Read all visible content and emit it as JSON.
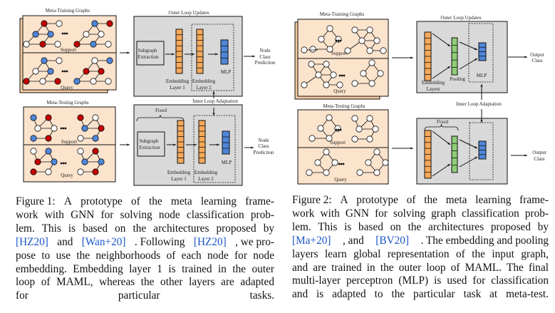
{
  "figure1": {
    "diagram": {
      "training_title": "Meta-Training Graphs",
      "testing_title": "Meta-Testing Graphs",
      "support": "Support",
      "query": "Query",
      "ellipsis": "•••",
      "outer_loop": "Outer Loop Updates",
      "inner_loop": "Inner Loop Adaptation",
      "subgraph": [
        "Subgraph",
        "Extraction"
      ],
      "emb1": [
        "Embedding",
        "Layer 1"
      ],
      "emb2": [
        "Embedding",
        "Layer 2"
      ],
      "mlp": "MLP",
      "fixed": "Fixed",
      "output": [
        "Node",
        "Class",
        "Prediction"
      ]
    },
    "caption_lines": [
      [
        {
          "t": "Figure 1:"
        },
        {
          "t": "A"
        },
        {
          "t": "prototype"
        },
        {
          "t": "of"
        },
        {
          "t": "the"
        },
        {
          "t": "meta"
        },
        {
          "t": "learning"
        },
        {
          "t": "frame-"
        }
      ],
      [
        {
          "t": "work with GNN for solving node classification prob-"
        }
      ],
      [
        {
          "t": "lem.  This is based on the architectures proposed by"
        }
      ],
      [
        {
          "t": "[HZ20]",
          "cite": true
        },
        {
          "t": "and"
        },
        {
          "t": "[Wan+20]",
          "cite": true
        },
        {
          "t": ". Following"
        },
        {
          "t": "[HZ20]",
          "cite": true
        },
        {
          "t": ", we pro-"
        }
      ],
      [
        {
          "t": "pose to use the neighborhoods of each node for node"
        }
      ],
      [
        {
          "t": "embedding. Embedding layer 1 is trained in the outer"
        }
      ],
      [
        {
          "t": "loop of MAML, whereas the other layers are adapted"
        }
      ],
      [
        {
          "t": "for particular tasks."
        }
      ]
    ]
  },
  "figure2": {
    "diagram": {
      "training_title": "Meta-Training Graphs",
      "testing_title": "Meta-Testing Graphs",
      "support": "Support",
      "query": "Query",
      "ellipsis": "•••",
      "outer_loop": "Outer Loop Updates",
      "inner_loop": "Inner Loop Adaptation",
      "emb": [
        "Embedding",
        "Layers"
      ],
      "pooling": "Pooling",
      "mlp": "MLP",
      "fixed": "Fixed",
      "output": [
        "Output",
        "Class"
      ]
    },
    "caption_lines": [
      [
        {
          "t": "Figure 2:"
        },
        {
          "t": "A"
        },
        {
          "t": "prototype"
        },
        {
          "t": "of"
        },
        {
          "t": "the"
        },
        {
          "t": "meta"
        },
        {
          "t": "learning"
        },
        {
          "t": "frame-"
        }
      ],
      [
        {
          "t": "work with GNN for solving graph classification prob-"
        }
      ],
      [
        {
          "t": "lem.  This is based on the architectures proposed by"
        }
      ],
      [
        {
          "t": "[Ma+20]",
          "cite": true
        },
        {
          "t": ", and"
        },
        {
          "t": "[BV20]",
          "cite": true
        },
        {
          "t": ". The embedding and pooling"
        }
      ],
      [
        {
          "t": "layers learn global representation of the input graph,"
        }
      ],
      [
        {
          "t": "and are trained in the outer loop of MAML. The final"
        }
      ],
      [
        {
          "t": "multi-layer perceptron (MLP) is used for classification"
        }
      ],
      [
        {
          "t": "and is adapted to the particular task at meta-test."
        }
      ]
    ]
  },
  "colors": {
    "panel": "#fbe3cc",
    "box": "#d9d9d9",
    "orange": "#f5a95a",
    "green": "#8fcc78",
    "blue": "#4f86d9",
    "red": "#c00000",
    "node_blue": "#4f86d9",
    "cite": "#1a56c8"
  }
}
